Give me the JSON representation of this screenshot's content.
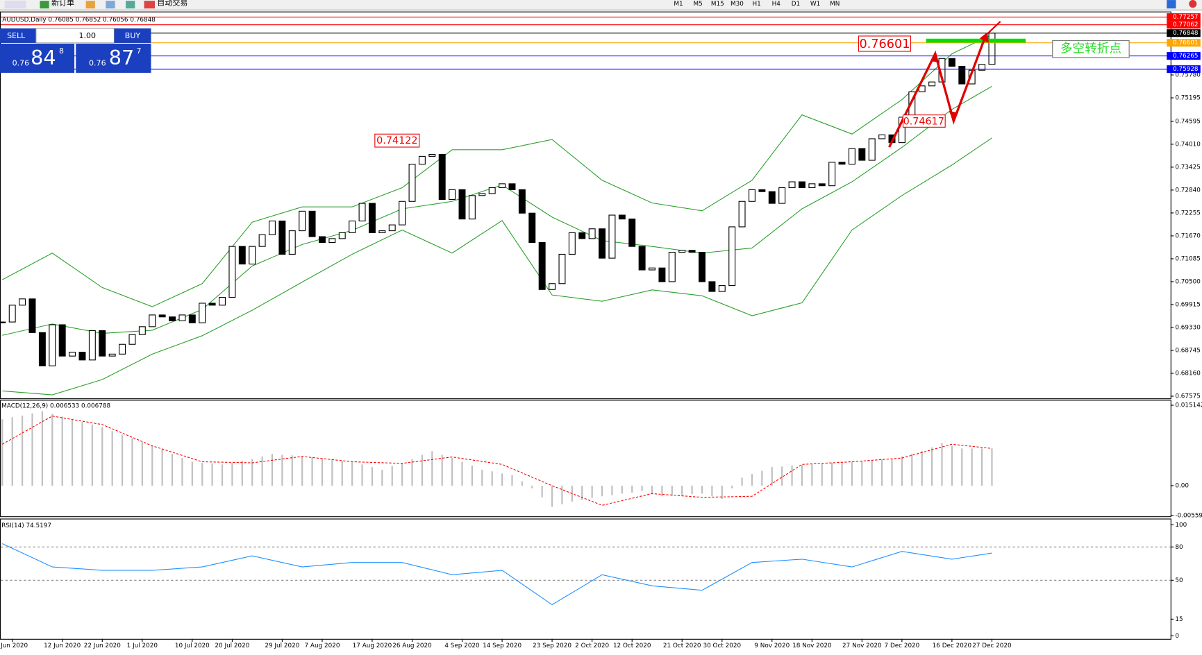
{
  "toolbar": {
    "new_order": "新订单",
    "auto_trading": "自动交易",
    "timeframes": [
      "M1",
      "M5",
      "M15",
      "M30",
      "H1",
      "H4",
      "D1",
      "W1",
      "MN"
    ]
  },
  "trade_panel": {
    "sell": "SELL",
    "buy": "BUY",
    "lot": "1.00",
    "sell_price": {
      "prefix": "0.76",
      "big": "84",
      "small": "8"
    },
    "buy_price": {
      "prefix": "0.76",
      "big": "87",
      "small": "7"
    }
  },
  "annotations": {
    "turn_price": "0.76601",
    "peak": "0.74122",
    "low": "0.74617",
    "turn_point": "多空转折点"
  },
  "chart_data": [
    {
      "type": "candlestick",
      "title": "AUDUSD,Daily  0.76085 0.76852 0.76056 0.76848",
      "categories": [
        null,
        "Jun 2020",
        null,
        null,
        null,
        null,
        "12 Jun 2020",
        null,
        null,
        null,
        "22 Jun 2020",
        null,
        null,
        null,
        "1 Jul 2020",
        null,
        null,
        null,
        null,
        "10 Jul 2020",
        null,
        null,
        null,
        "20 Jul 2020",
        null,
        null,
        null,
        null,
        "29 Jul 2020",
        null,
        null,
        null,
        "7 Aug 2020",
        null,
        null,
        null,
        null,
        "17 Aug 2020",
        null,
        null,
        null,
        "26 Aug 2020",
        null,
        null,
        null,
        null,
        "4 Sep 2020",
        null,
        null,
        null,
        "14 Sep 2020",
        null,
        null,
        null,
        null,
        "23 Sep 2020",
        null,
        null,
        null,
        "2 Oct 2020",
        null,
        null,
        null,
        "12 Oct 2020",
        null,
        null,
        null,
        null,
        "21 Oct 2020",
        null,
        null,
        null,
        "30 Oct 2020",
        null,
        null,
        null,
        null,
        "9 Nov 2020",
        null,
        null,
        null,
        "18 Nov 2020",
        null,
        null,
        null,
        null,
        "27 Nov 2020",
        null,
        null,
        null,
        "7 Dec 2020",
        null,
        null,
        null,
        null,
        "16 Dec 2020",
        null,
        null,
        null,
        "27 Dec 2020"
      ],
      "values": [
        0.6947,
        0.699,
        0.7006,
        0.692,
        0.6835,
        0.694,
        0.686,
        0.687,
        0.685,
        0.6925,
        0.686,
        0.6865,
        0.689,
        0.6915,
        0.6935,
        0.6965,
        0.696,
        0.695,
        0.6965,
        0.6945,
        0.6995,
        0.699,
        0.701,
        0.714,
        0.7095,
        0.714,
        0.717,
        0.7205,
        0.712,
        0.718,
        0.723,
        0.7165,
        0.715,
        0.716,
        0.7175,
        0.7205,
        0.725,
        0.7175,
        0.718,
        0.7195,
        0.7255,
        0.735,
        0.737,
        0.7375,
        0.726,
        0.7285,
        0.721,
        0.727,
        0.7275,
        0.729,
        0.73,
        0.7285,
        0.7225,
        0.715,
        0.703,
        0.7045,
        0.712,
        0.7175,
        0.716,
        0.7185,
        0.711,
        0.722,
        0.721,
        0.714,
        0.708,
        0.7085,
        0.705,
        0.7125,
        0.713,
        0.7125,
        0.705,
        0.7025,
        0.704,
        0.719,
        0.7255,
        0.7285,
        0.728,
        0.725,
        0.729,
        0.7305,
        0.729,
        0.73,
        0.7295,
        0.7355,
        0.735,
        0.739,
        0.736,
        0.7415,
        0.7425,
        0.7405,
        0.747,
        0.7535,
        0.755,
        0.756,
        0.762,
        0.76,
        0.7555,
        0.759,
        0.7605,
        0.7685
      ],
      "bollinger": {
        "color": "#2ca02c",
        "x": [
          0,
          5,
          10,
          15,
          20,
          25,
          30,
          35,
          40,
          45,
          50,
          55,
          60,
          65,
          70,
          75,
          80,
          85,
          90,
          95,
          99
        ],
        "upper": [
          0.7055,
          0.7123,
          0.7035,
          0.6986,
          0.7045,
          0.7202,
          0.7241,
          0.7241,
          0.729,
          0.7387,
          0.7387,
          0.7413,
          0.7309,
          0.7251,
          0.7231,
          0.7309,
          0.7476,
          0.7427,
          0.7515,
          0.7632,
          0.7681
        ],
        "middle": [
          0.6913,
          0.6942,
          0.6918,
          0.6926,
          0.6979,
          0.709,
          0.7145,
          0.7181,
          0.7236,
          0.7255,
          0.7297,
          0.7215,
          0.7155,
          0.714,
          0.7123,
          0.7136,
          0.7236,
          0.7305,
          0.7393,
          0.749,
          0.7549
        ],
        "lower": [
          0.6771,
          0.6761,
          0.68,
          0.6865,
          0.6912,
          0.6977,
          0.7049,
          0.712,
          0.7182,
          0.7123,
          0.7206,
          0.7016,
          0.7,
          0.7029,
          0.7014,
          0.6963,
          0.6996,
          0.7182,
          0.727,
          0.7348,
          0.7417
        ]
      },
      "ylim": [
        0.6752,
        0.7736
      ],
      "yticks": [
        {
          "value": 0.7578,
          "label": "0.75780"
        },
        0.75195,
        0.74595,
        {
          "value": 0.7401,
          "label": "0.74010"
        },
        0.73425,
        {
          "value": 0.7284,
          "label": "0.72840"
        },
        0.72255,
        {
          "value": 0.7167,
          "label": "0.71670"
        },
        0.71085,
        {
          "value": 0.705,
          "label": "0.70500"
        },
        0.69915,
        {
          "value": 0.6933,
          "label": "0.69330"
        },
        0.68745,
        {
          "value": 0.6816,
          "label": "0.68160"
        },
        0.67575
      ],
      "price_lines": [
        {
          "value": 0.77257,
          "color": "#ff0000"
        },
        {
          "value": 0.77062,
          "color": "#ff0000"
        },
        {
          "value": 0.76848,
          "color": "#000000"
        },
        {
          "value": 0.76601,
          "color": "#ffa500"
        },
        {
          "value": 0.76265,
          "color": "#0000ff"
        },
        {
          "value": 0.75928,
          "color": "#0000ff"
        }
      ]
    },
    {
      "type": "macd",
      "title": "MACD(12,26,9) 0.006533 0.006788",
      "bar_color": "#c0c0c0",
      "values": [
        0.0125,
        0.0129,
        0.0132,
        0.0136,
        0.014,
        0.0135,
        0.013,
        0.0125,
        0.012,
        0.0115,
        0.011,
        0.0103,
        0.0096,
        0.0089,
        0.0082,
        0.0075,
        0.0068,
        0.006,
        0.0052,
        0.0045,
        0.0043,
        0.0042,
        0.004,
        0.0043,
        0.0047,
        0.005,
        0.0055,
        0.006,
        0.0058,
        0.0057,
        0.0055,
        0.0053,
        0.0051,
        0.0049,
        0.0047,
        0.0045,
        0.004,
        0.0035,
        0.003,
        0.0037,
        0.0043,
        0.005,
        0.0058,
        0.0065,
        0.0058,
        0.0052,
        0.0045,
        0.0038,
        0.003,
        0.0027,
        0.0023,
        0.002,
        0.0008,
        -0.0005,
        -0.0022,
        -0.004,
        -0.0035,
        -0.003,
        -0.0027,
        -0.0023,
        -0.002,
        -0.0018,
        -0.0015,
        -0.0013,
        -0.001,
        -0.0015,
        -0.002,
        -0.0019,
        -0.0018,
        -0.0016,
        -0.0015,
        -0.002,
        -0.0025,
        -0.0005,
        0.0015,
        0.0022,
        0.0028,
        0.0035,
        0.0036,
        0.0038,
        0.0039,
        0.004,
        0.0041,
        0.0043,
        0.0044,
        0.0045,
        0.0046,
        0.0048,
        0.0049,
        0.005,
        0.0055,
        0.006,
        0.0065,
        0.0072,
        0.008,
        0.0075,
        0.007,
        0.007,
        0.007,
        0.007
      ],
      "signal": {
        "color": "#ff0000",
        "x": [
          0,
          5,
          10,
          15,
          20,
          25,
          30,
          35,
          40,
          45,
          50,
          55,
          60,
          65,
          70,
          75,
          80,
          85,
          90,
          95,
          99
        ],
        "values": [
          0.0078,
          0.0131,
          0.0115,
          0.0075,
          0.0045,
          0.0043,
          0.0055,
          0.0045,
          0.0042,
          0.0054,
          0.004,
          0.0,
          -0.0037,
          -0.0015,
          -0.0022,
          -0.002,
          0.004,
          0.0045,
          0.0052,
          0.0078,
          0.007
        ]
      },
      "ylim": [
        -0.00606,
        0.01586
      ],
      "yticks": [
        0.015142,
        {
          "value": 0,
          "label": "0.00"
        },
        -0.005595
      ]
    },
    {
      "type": "line",
      "title": "RSI(14) 74.5197",
      "color": "#1e90ff",
      "x": [
        0,
        5,
        10,
        15,
        20,
        25,
        30,
        35,
        40,
        45,
        50,
        55,
        60,
        65,
        70,
        75,
        80,
        85,
        90,
        95,
        99
      ],
      "values": [
        83,
        62,
        59,
        59,
        62,
        72,
        62,
        66,
        66,
        55,
        59,
        28,
        55,
        45,
        41,
        66,
        69,
        62,
        76,
        69,
        74.5
      ],
      "ylim": [
        0,
        100
      ],
      "yticks": [
        100,
        80,
        50,
        15,
        0
      ],
      "levels": [
        80,
        50
      ]
    }
  ]
}
